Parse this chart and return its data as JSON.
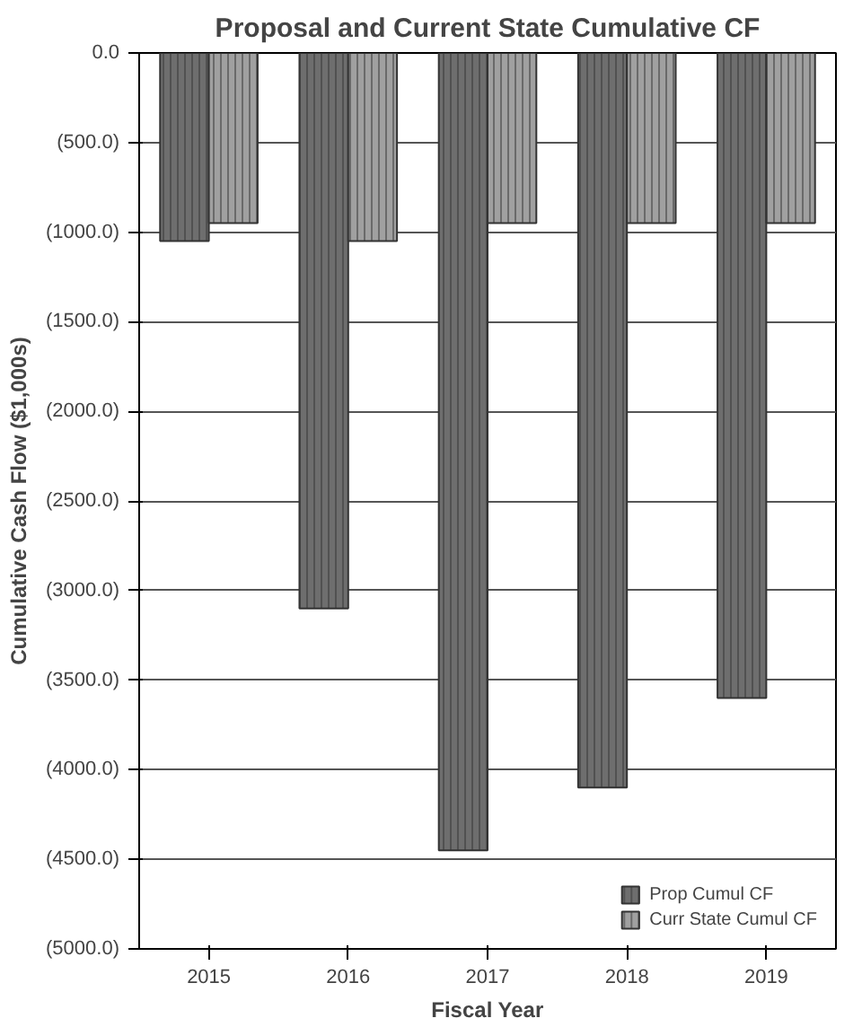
{
  "chart_data": {
    "type": "bar",
    "title": "Proposal and Current State Cumulative CF",
    "xlabel": "Fiscal Year",
    "ylabel": "Cumulative Cash Flow ($1,000s)",
    "categories": [
      "2015",
      "2016",
      "2017",
      "2018",
      "2019"
    ],
    "series": [
      {
        "name": "Prop Cumul CF",
        "color": "#6e6e6e",
        "values": [
          -1050,
          -3100,
          -4450,
          -4100,
          -3600
        ]
      },
      {
        "name": "Curr State Cumul CF",
        "color": "#a0a0a0",
        "values": [
          -950,
          -1050,
          -950,
          -950,
          -950
        ]
      }
    ],
    "ylim": [
      -5000,
      0
    ],
    "yticks": [
      {
        "value": 0,
        "label": "0.0"
      },
      {
        "value": -500,
        "label": "(500.0)"
      },
      {
        "value": -1000,
        "label": "(1000.0)"
      },
      {
        "value": -1500,
        "label": "(1500.0)"
      },
      {
        "value": -2000,
        "label": "(2000.0)"
      },
      {
        "value": -2500,
        "label": "(2500.0)"
      },
      {
        "value": -3000,
        "label": "(3000.0)"
      },
      {
        "value": -3500,
        "label": "(3500.0)"
      },
      {
        "value": -4000,
        "label": "(4000.0)"
      },
      {
        "value": -4500,
        "label": "(4500.0)"
      },
      {
        "value": -5000,
        "label": "(5000.0)"
      }
    ],
    "grid": "y",
    "legend": "bottom right"
  }
}
